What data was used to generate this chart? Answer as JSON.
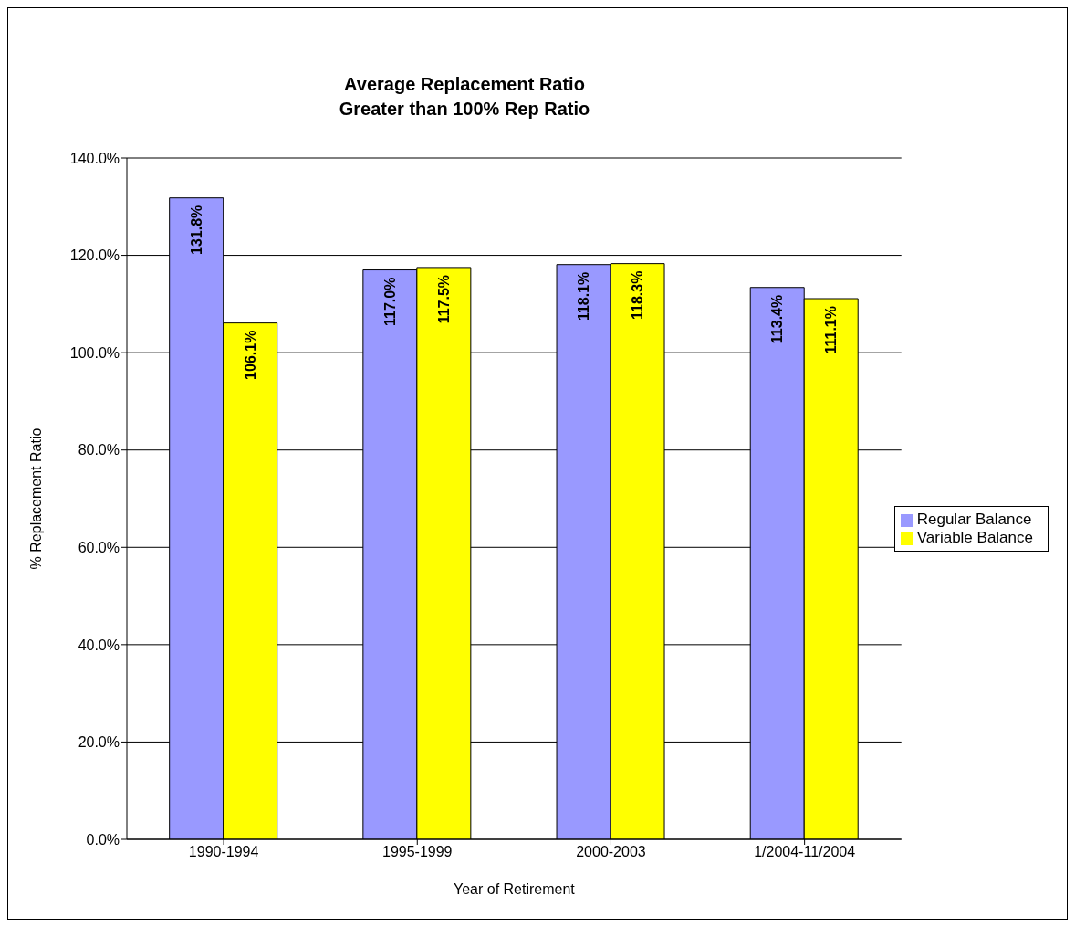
{
  "chart_data": {
    "type": "bar",
    "title": "Average Replacement Ratio\nGreater than 100% Rep Ratio",
    "xlabel": "Year of Retirement",
    "ylabel": "% Replacement Ratio",
    "categories": [
      "1990-1994",
      "1995-1999",
      "2000-2003",
      "1/2004-11/2004"
    ],
    "series": [
      {
        "name": "Regular Balance",
        "color": "#9999ff",
        "values": [
          131.8,
          117.0,
          118.1,
          113.4
        ],
        "value_labels": [
          "131.8%",
          "117.0%",
          "118.1%",
          "113.4%"
        ]
      },
      {
        "name": "Variable Balance",
        "color": "#ffff00",
        "values": [
          106.1,
          117.5,
          118.3,
          111.1
        ],
        "value_labels": [
          "106.1%",
          "117.5%",
          "118.3%",
          "111.1%"
        ]
      }
    ],
    "ylim": [
      0,
      140
    ],
    "yticks": [
      {
        "value": 0,
        "label": "0.0%"
      },
      {
        "value": 20,
        "label": "20.0%"
      },
      {
        "value": 40,
        "label": "40.0%"
      },
      {
        "value": 60,
        "label": "60.0%"
      },
      {
        "value": 80,
        "label": "80.0%"
      },
      {
        "value": 100,
        "label": "100.0%"
      },
      {
        "value": 120,
        "label": "120.0%"
      },
      {
        "value": 140,
        "label": "140.0%"
      }
    ],
    "grid": "y",
    "legend": "right"
  }
}
